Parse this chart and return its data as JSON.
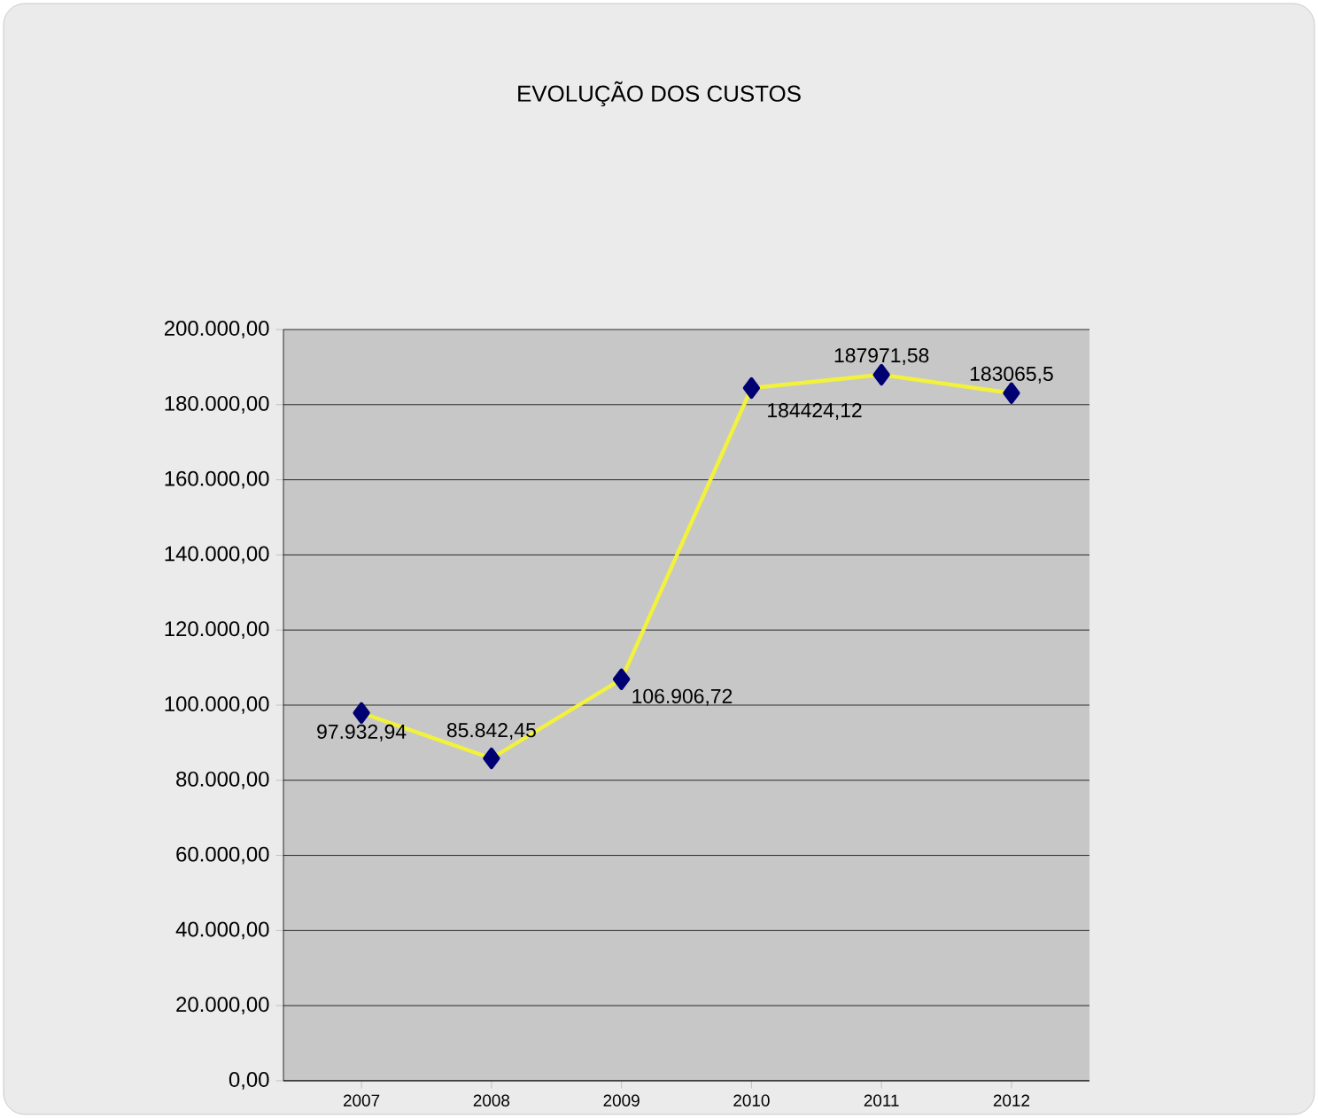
{
  "chart_data": {
    "type": "line",
    "title": "EVOLUÇÃO DOS CUSTOS",
    "categories": [
      "2007",
      "2008",
      "2009",
      "2010",
      "2011",
      "2012"
    ],
    "values": [
      97932.94,
      85842.45,
      106906.72,
      184424.12,
      187971.58,
      183065.5
    ],
    "value_labels": [
      "97.932,94",
      "85.842,45",
      "106.906,72",
      "184424,12",
      "187971,58",
      "183065,5"
    ],
    "color": "#f2f23c",
    "marker": "diamond",
    "line_style": "solid",
    "grid": "y",
    "ylim": [
      0,
      200000
    ],
    "yticks": [
      {
        "value": 0,
        "label": "0,00"
      },
      {
        "value": 20000,
        "label": "20.000,00"
      },
      {
        "value": 40000,
        "label": "40.000,00"
      },
      {
        "value": 60000,
        "label": "60.000,00"
      },
      {
        "value": 80000,
        "label": "80.000,00"
      },
      {
        "value": 100000,
        "label": "100.000,00"
      },
      {
        "value": 120000,
        "label": "120.000,00"
      },
      {
        "value": 140000,
        "label": "140.000,00"
      },
      {
        "value": 160000,
        "label": "160.000,00"
      },
      {
        "value": 180000,
        "label": "180.000,00"
      },
      {
        "value": 200000,
        "label": "200.000,00"
      }
    ]
  }
}
